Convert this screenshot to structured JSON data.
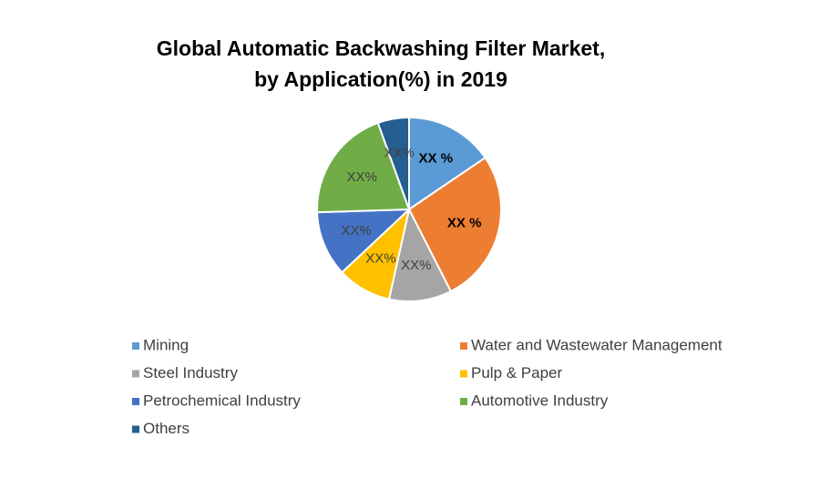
{
  "chart_data": {
    "type": "pie",
    "title": [
      "Global Automatic Backwashing Filter Market,",
      "by Application(%) in 2019"
    ],
    "categories": [
      "Mining",
      "Water and Wastewater Management",
      "Steel Industry",
      "Pulp & Paper",
      "Petrochemical Industry",
      "Automotive Industry",
      "Others"
    ],
    "values": [
      15.5,
      27,
      11,
      9.5,
      11.5,
      20,
      5.5
    ],
    "value_labels": [
      "XX %",
      "XX %",
      "XX%",
      "XX%",
      "XX%",
      "XX%",
      "XX%"
    ],
    "colors": [
      "#5b9bd5",
      "#ed7d31",
      "#a5a5a5",
      "#ffc000",
      "#4472c4",
      "#70ad47",
      "#255e91"
    ]
  }
}
